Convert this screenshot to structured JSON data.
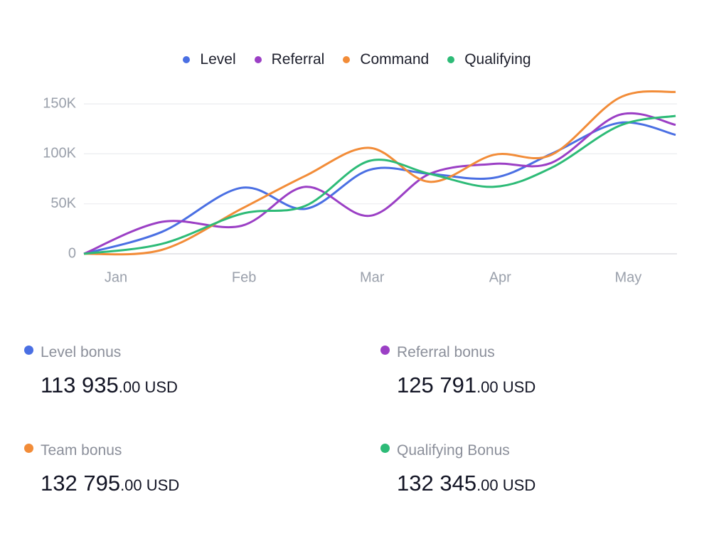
{
  "chart_data": {
    "type": "line",
    "x": [
      -0.25,
      0.36,
      0.98,
      1.48,
      1.98,
      2.45,
      2.95,
      3.4,
      3.93,
      4.37
    ],
    "xlim": [
      -0.25,
      4.37
    ],
    "xticks": [
      {
        "value": 0,
        "label": "Jan"
      },
      {
        "value": 1,
        "label": "Feb"
      },
      {
        "value": 2,
        "label": "Mar"
      },
      {
        "value": 3,
        "label": "Apr"
      },
      {
        "value": 4,
        "label": "May"
      }
    ],
    "ylim": [
      0,
      165000
    ],
    "yticks": [
      0,
      {
        "value": 50000,
        "label": "50K"
      },
      {
        "value": 100000,
        "label": "100K"
      },
      {
        "value": 150000,
        "label": "150K"
      }
    ],
    "grid": true,
    "legend": "top",
    "series": [
      {
        "name": "Level",
        "color": "#4a6fe3",
        "values": [
          0,
          22000,
          66000,
          45000,
          84000,
          80000,
          76000,
          100000,
          131000,
          119000
        ]
      },
      {
        "name": "Referral",
        "color": "#9b3fc5",
        "values": [
          0,
          32000,
          28000,
          67000,
          38000,
          80000,
          90000,
          91000,
          139000,
          129000
        ]
      },
      {
        "name": "Command",
        "color": "#f28c38",
        "values": [
          0,
          4000,
          45000,
          78000,
          106000,
          72000,
          99000,
          99000,
          156000,
          162000
        ]
      },
      {
        "name": "Qualifying",
        "color": "#2dbb77",
        "values": [
          0,
          10000,
          40000,
          48000,
          93000,
          80000,
          67000,
          86000,
          128000,
          138000
        ]
      }
    ]
  },
  "cards": [
    {
      "label": "Level bonus",
      "amount": "113 935",
      "suffix": ".00 USD",
      "color": "#4a6fe3"
    },
    {
      "label": "Referral bonus",
      "amount": "125 791",
      "suffix": ".00 USD",
      "color": "#9b3fc5"
    },
    {
      "label": "Team bonus",
      "amount": "132 795",
      "suffix": ".00 USD",
      "color": "#f28c38"
    },
    {
      "label": "Qualifying Bonus",
      "amount": "132 345",
      "suffix": ".00 USD",
      "color": "#2dbb77"
    }
  ]
}
